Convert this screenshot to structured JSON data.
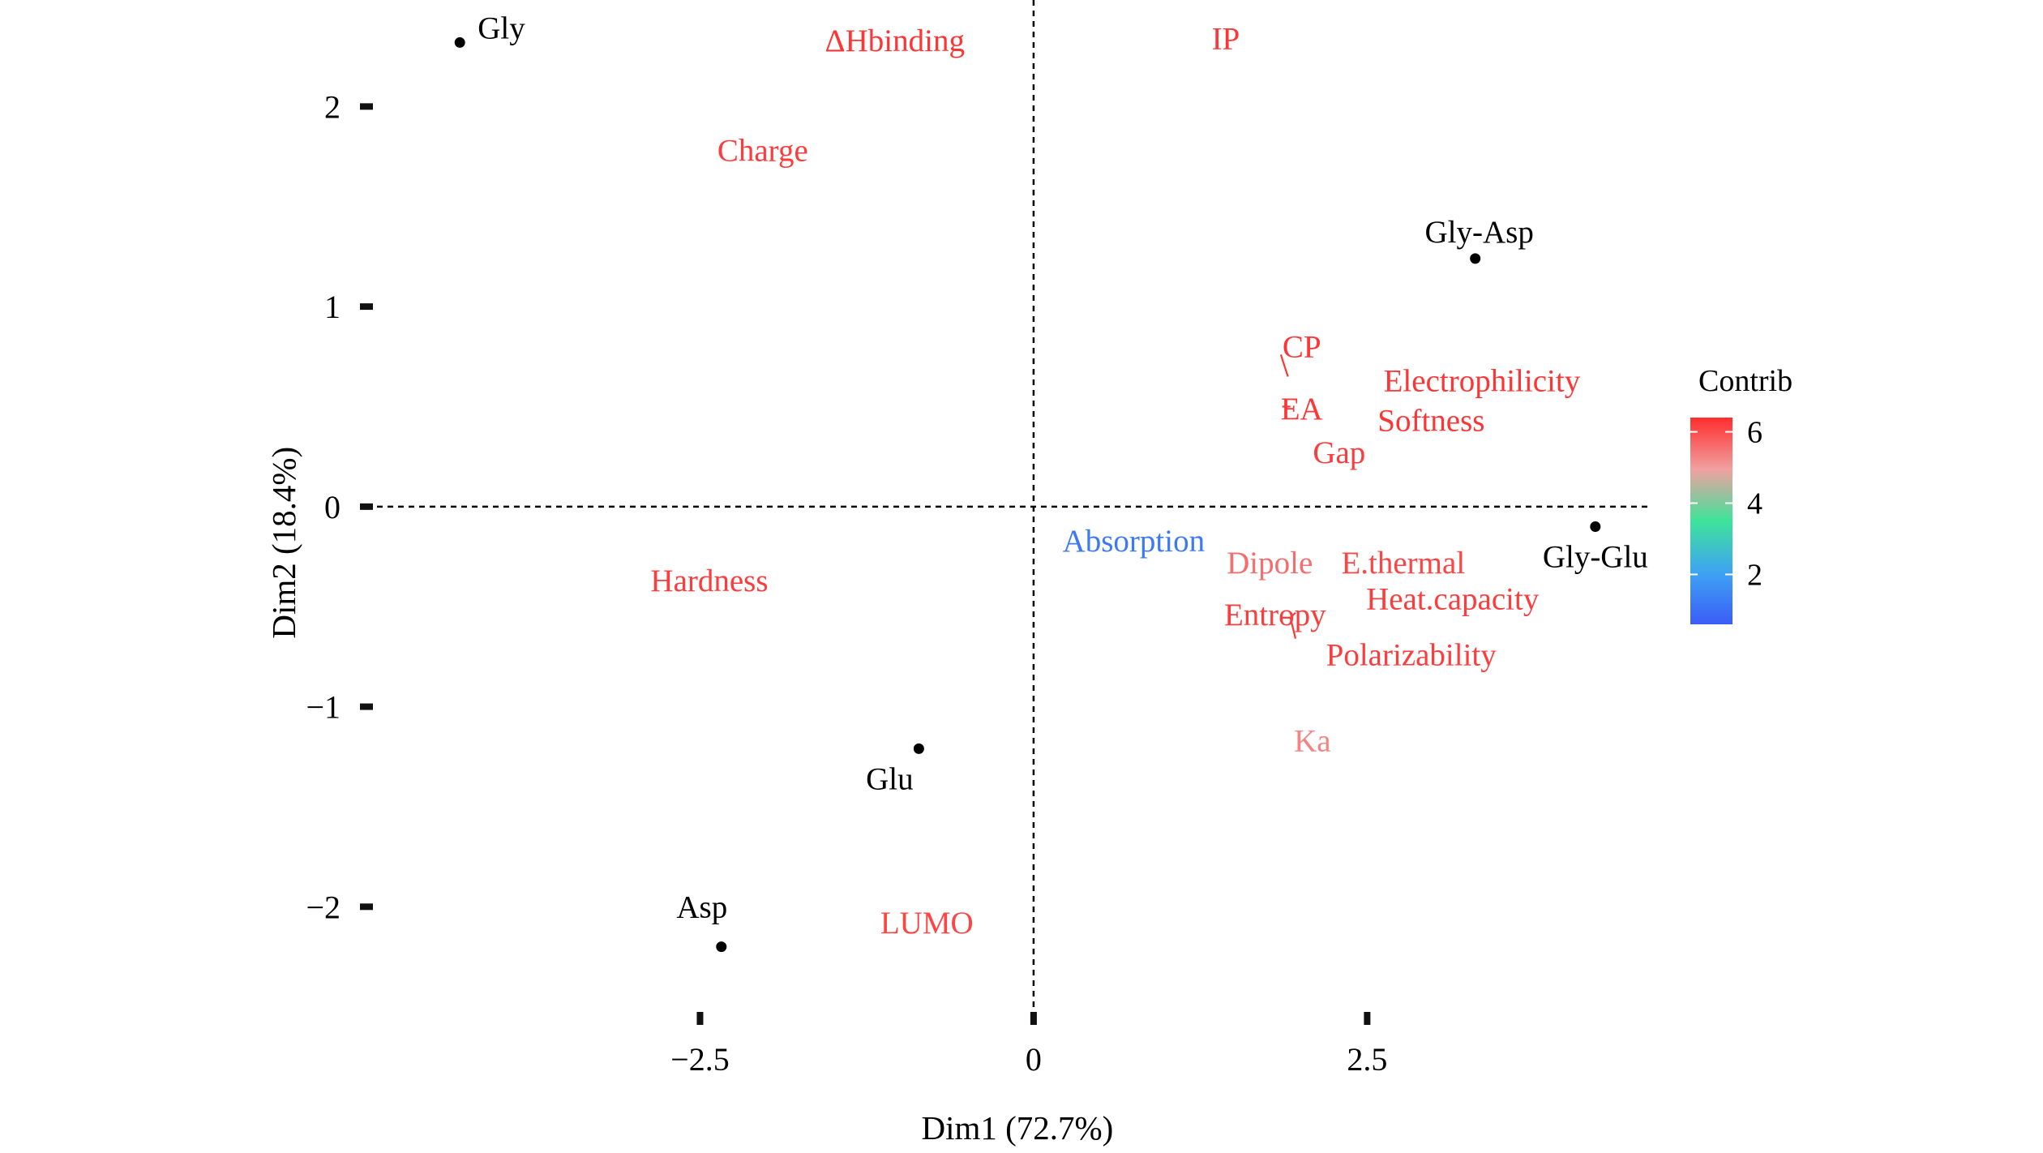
{
  "chart_data": {
    "type": "scatter",
    "subtype": "PCA biplot",
    "xlabel": "Dim1 (72.7%)",
    "ylabel": "Dim2 (18.4%)",
    "xlim": [
      -5.0,
      4.6
    ],
    "ylim": [
      -2.55,
      2.5
    ],
    "x_ticks": [
      -2.5,
      0,
      2.5
    ],
    "x_tick_labels": [
      "−2.5",
      "0",
      "2.5"
    ],
    "y_ticks": [
      -2,
      -1,
      0,
      1,
      2
    ],
    "y_tick_labels": [
      "−2",
      "−1",
      "0",
      "1",
      "2"
    ],
    "reference_lines": [
      "x = 0",
      "y = 0"
    ],
    "grid": false,
    "observations": [
      {
        "name": "Gly",
        "x": -4.3,
        "y": 2.32
      },
      {
        "name": "Gly-Asp",
        "x": 3.31,
        "y": 1.24
      },
      {
        "name": "Gly-Glu",
        "x": 4.21,
        "y": -0.1
      },
      {
        "name": "Glu",
        "x": -0.86,
        "y": -1.21
      },
      {
        "name": "Asp",
        "x": -2.34,
        "y": -2.2
      }
    ],
    "variables": [
      {
        "name": "ΔHbinding",
        "x": -1.04,
        "y": 2.33,
        "contrib": 6.3
      },
      {
        "name": "IP",
        "x": 1.44,
        "y": 2.34,
        "contrib": 6.3
      },
      {
        "name": "Charge",
        "x": -2.03,
        "y": 1.78,
        "contrib": 6.2
      },
      {
        "name": "CP",
        "x": 2.01,
        "y": 0.8,
        "contrib": 6.3
      },
      {
        "name": "Electrophilicity",
        "x": 3.36,
        "y": 0.63,
        "contrib": 6.3
      },
      {
        "name": "EA",
        "x": 2.01,
        "y": 0.49,
        "contrib": 6.3
      },
      {
        "name": "Softness",
        "x": 2.98,
        "y": 0.43,
        "contrib": 6.3
      },
      {
        "name": "Gap",
        "x": 2.29,
        "y": 0.27,
        "contrib": 6.2
      },
      {
        "name": "Absorption",
        "x": 0.75,
        "y": -0.17,
        "contrib": 1.2
      },
      {
        "name": "Hardness",
        "x": -2.43,
        "y": -0.37,
        "contrib": 6.2
      },
      {
        "name": "Dipole",
        "x": 1.77,
        "y": -0.28,
        "contrib": 5.6
      },
      {
        "name": "E.thermal",
        "x": 2.77,
        "y": -0.28,
        "contrib": 6.1
      },
      {
        "name": "Heat.capacity",
        "x": 3.14,
        "y": -0.46,
        "contrib": 6.2
      },
      {
        "name": "Entropy",
        "x": 1.81,
        "y": -0.54,
        "contrib": 6.2
      },
      {
        "name": "Polarizability",
        "x": 2.83,
        "y": -0.74,
        "contrib": 6.2
      },
      {
        "name": "Ka",
        "x": 2.09,
        "y": -1.17,
        "contrib": 5.3
      },
      {
        "name": "LUMO",
        "x": -0.8,
        "y": -2.08,
        "contrib": 6.1
      }
    ],
    "legend": {
      "title": "Contrib",
      "position": "right",
      "ticks": [
        "2",
        "4",
        "6"
      ],
      "tick_values": [
        2,
        4,
        6
      ],
      "range": [
        0.6,
        6.4
      ],
      "colors": [
        "#3b5cf7",
        "#3ea3f3",
        "#3ee39a",
        "#f0a0a0",
        "#ff2d2d"
      ]
    }
  }
}
